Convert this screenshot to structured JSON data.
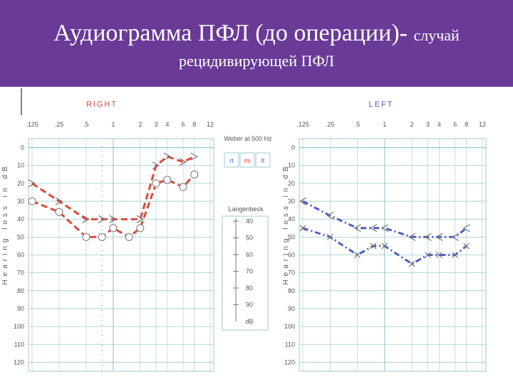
{
  "slide": {
    "title_main": "Аудиограмма ПФЛ (до операции)-",
    "title_suffix": "случай",
    "title_line2": "рецидивирующей ПФЛ"
  },
  "colors": {
    "header_bg": "#6a3a97",
    "right_ear": "#d94a3a",
    "left_ear": "#4a5fc4",
    "grid": "#9ecbcb",
    "axis_text": "#555555"
  },
  "center_panel": {
    "weber_label": "Weber at 500 Hz",
    "weber_boxes": [
      "rt",
      "mi",
      "lt"
    ],
    "weber_selected": "mi",
    "langenbeck_label": "Langenbeck",
    "langenbeck_ticks": [
      "40",
      "50",
      "60",
      "70",
      "80",
      "90",
      "dB"
    ]
  },
  "chart_data": [
    {
      "type": "line",
      "panel": "RIGHT",
      "title": "RIGHT",
      "ylabel": "Hearing loss in dB",
      "x_ticks": [
        ".125",
        ".25",
        ".5",
        "1",
        "2",
        "3",
        "4",
        "6",
        "8",
        "12"
      ],
      "y_ticks": [
        "0",
        "10",
        "20",
        "30",
        "40",
        "50",
        "60",
        "70",
        "80",
        "90",
        "100",
        "110",
        "120"
      ],
      "ylim": [
        0,
        120
      ],
      "series": [
        {
          "marker": "circle",
          "line": "dash",
          "x": [
            0.125,
            0.25,
            0.5,
            0.75,
            1,
            1.5,
            2,
            3,
            4,
            6,
            8
          ],
          "y": [
            30,
            36,
            50,
            50,
            45,
            50,
            45,
            20,
            18,
            22,
            15
          ]
        },
        {
          "marker": "gt",
          "line": "dash",
          "x": [
            0.125,
            0.25,
            0.5,
            0.75,
            1,
            2,
            3,
            4,
            6,
            8
          ],
          "y": [
            20,
            30,
            40,
            40,
            40,
            40,
            10,
            5,
            8,
            5
          ]
        }
      ]
    },
    {
      "type": "line",
      "panel": "LEFT",
      "title": "LEFT",
      "ylabel": "Hearing loss in dB",
      "x_ticks": [
        ".125",
        ".25",
        ".5",
        "1",
        "2",
        "3",
        "4",
        "6",
        "8",
        "12"
      ],
      "y_ticks": [
        "0",
        "10",
        "20",
        "30",
        "40",
        "50",
        "60",
        "70",
        "80",
        "90",
        "100",
        "110",
        "120"
      ],
      "ylim": [
        0,
        120
      ],
      "series": [
        {
          "marker": "x",
          "line": "dash-dot",
          "x": [
            0.125,
            0.25,
            0.5,
            0.75,
            1,
            2,
            3,
            4,
            6,
            8
          ],
          "y": [
            45,
            50,
            60,
            55,
            55,
            65,
            60,
            60,
            60,
            55
          ]
        },
        {
          "marker": "lt",
          "line": "dash-dot",
          "x": [
            0.125,
            0.25,
            0.5,
            0.75,
            1,
            2,
            3,
            4,
            6,
            8
          ],
          "y": [
            30,
            38,
            45,
            45,
            45,
            50,
            50,
            50,
            50,
            45
          ]
        }
      ]
    }
  ]
}
